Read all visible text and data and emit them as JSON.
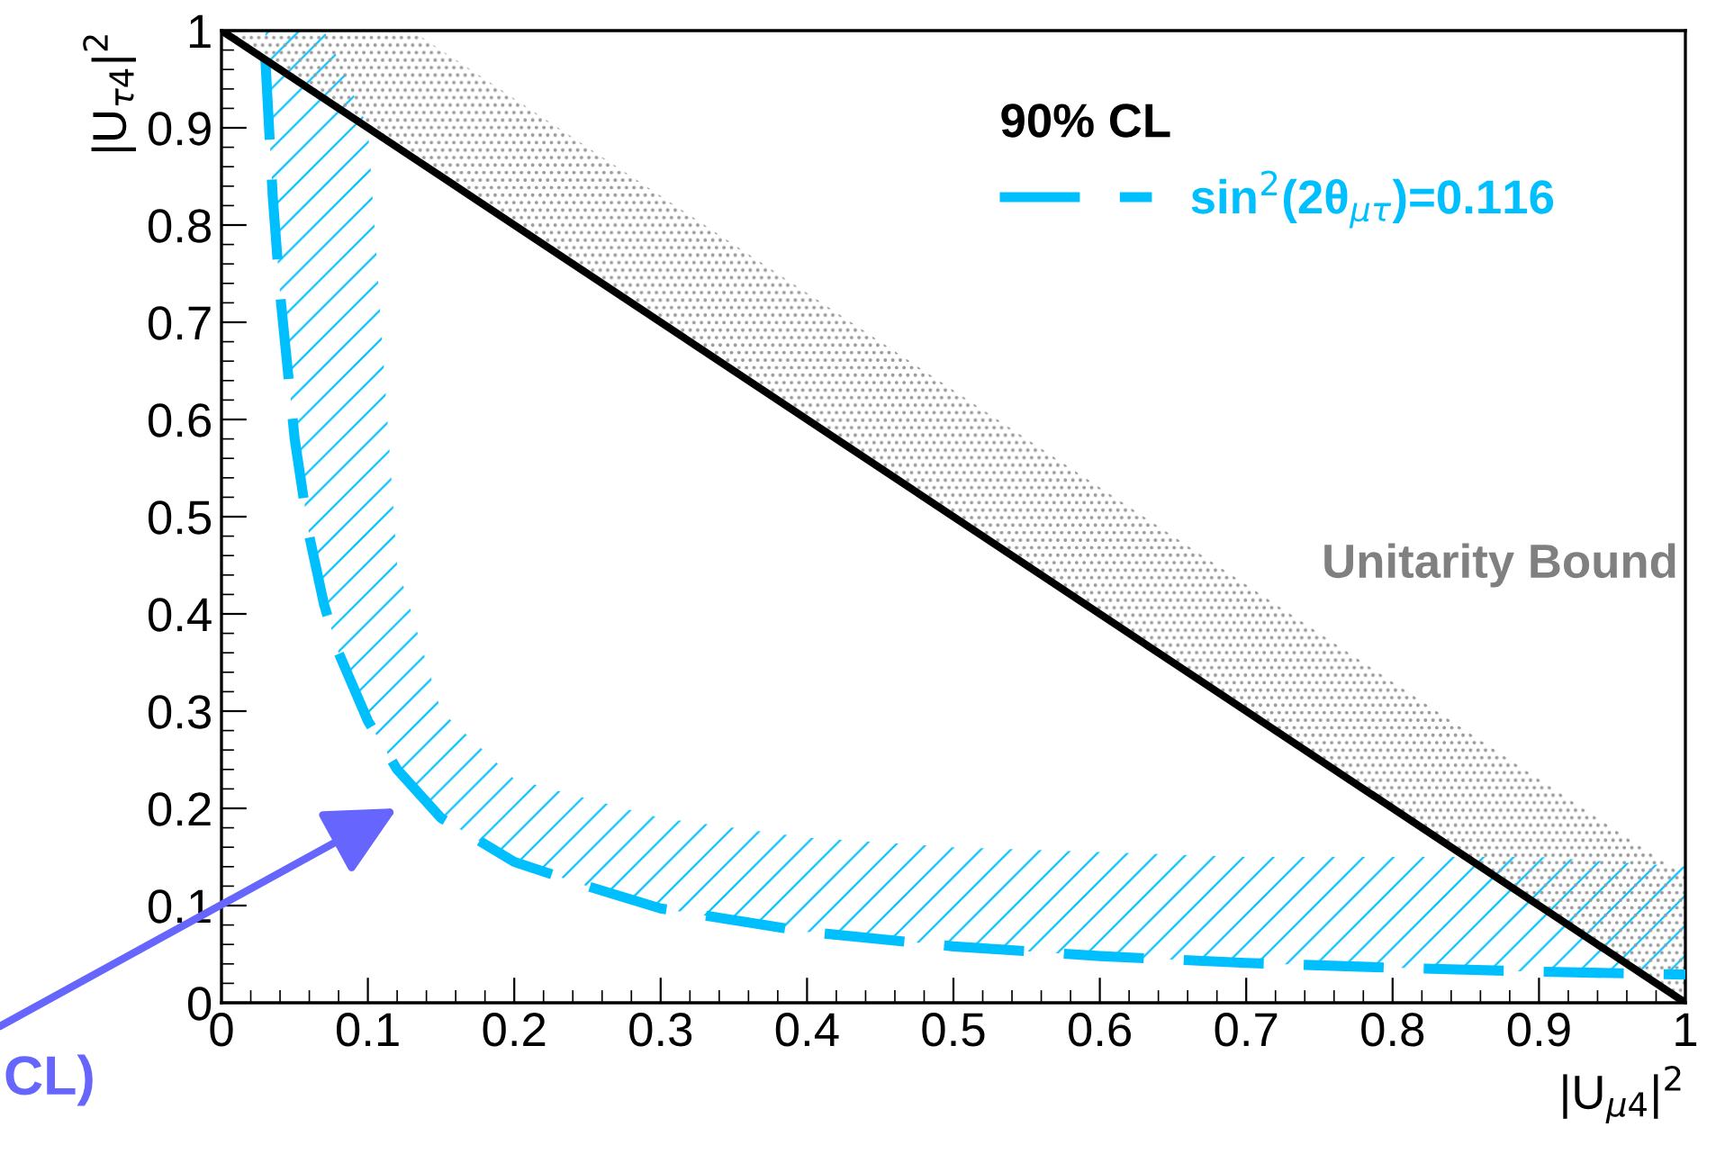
{
  "chart_data": {
    "type": "line",
    "xlabel": "|U$_{μ4}$|$^{2}$",
    "ylabel": "|U$_{τ4}$|$^{2}$",
    "legend_title": "90% CL",
    "xlim": [
      0,
      1
    ],
    "ylim": [
      0,
      1
    ],
    "xticks": [
      0,
      0.1,
      0.2,
      0.3,
      0.4,
      0.5,
      0.6,
      0.7,
      0.8,
      0.9,
      1
    ],
    "yticks": [
      0,
      0.1,
      0.2,
      0.3,
      0.4,
      0.5,
      0.6,
      0.7,
      0.8,
      0.9,
      1
    ],
    "grid": false,
    "legend": "top right",
    "series": [
      {
        "name": "sin$^{2}$(2θ$_{μτ}$)=0.116",
        "color": "#00bfff",
        "line_style": "dashed",
        "x": [
          0.03,
          0.035,
          0.04,
          0.05,
          0.06,
          0.07,
          0.08,
          0.1,
          0.12,
          0.15,
          0.2,
          0.25,
          0.3,
          0.4,
          0.5,
          0.6,
          0.7,
          0.8,
          0.9,
          1.0
        ],
        "values": [
          0.97,
          0.83,
          0.73,
          0.58,
          0.48,
          0.41,
          0.36,
          0.29,
          0.24,
          0.19,
          0.145,
          0.12,
          0.097,
          0.073,
          0.058,
          0.048,
          0.041,
          0.036,
          0.032,
          0.029
        ],
        "lower": [
          0.97,
          0.83,
          0.73,
          0.58,
          0.48,
          0.41,
          0.36,
          0.29,
          0.24,
          0.19,
          0.145,
          0.12,
          0.097,
          0.073,
          0.058,
          0.048,
          0.041,
          0.036,
          0.032,
          0.029
        ],
        "upper": [
          1.0,
          1.0,
          1.0,
          1.0,
          1.0,
          1.0,
          0.97,
          0.9,
          0.45,
          0.3,
          0.23,
          0.21,
          0.19,
          0.17,
          0.16,
          0.155,
          0.15,
          0.15,
          0.15,
          0.14
        ]
      },
      {
        "color": "#000000",
        "line_style": "solid",
        "x": [
          0,
          0.13,
          1
        ],
        "values": [
          1,
          0.87,
          0
        ],
        "lower": [
          1,
          0.87,
          0
        ],
        "upper": [
          1,
          1,
          0.13
        ]
      }
    ],
    "annotations": [
      "Unitarity Bound",
      "CL)"
    ]
  }
}
